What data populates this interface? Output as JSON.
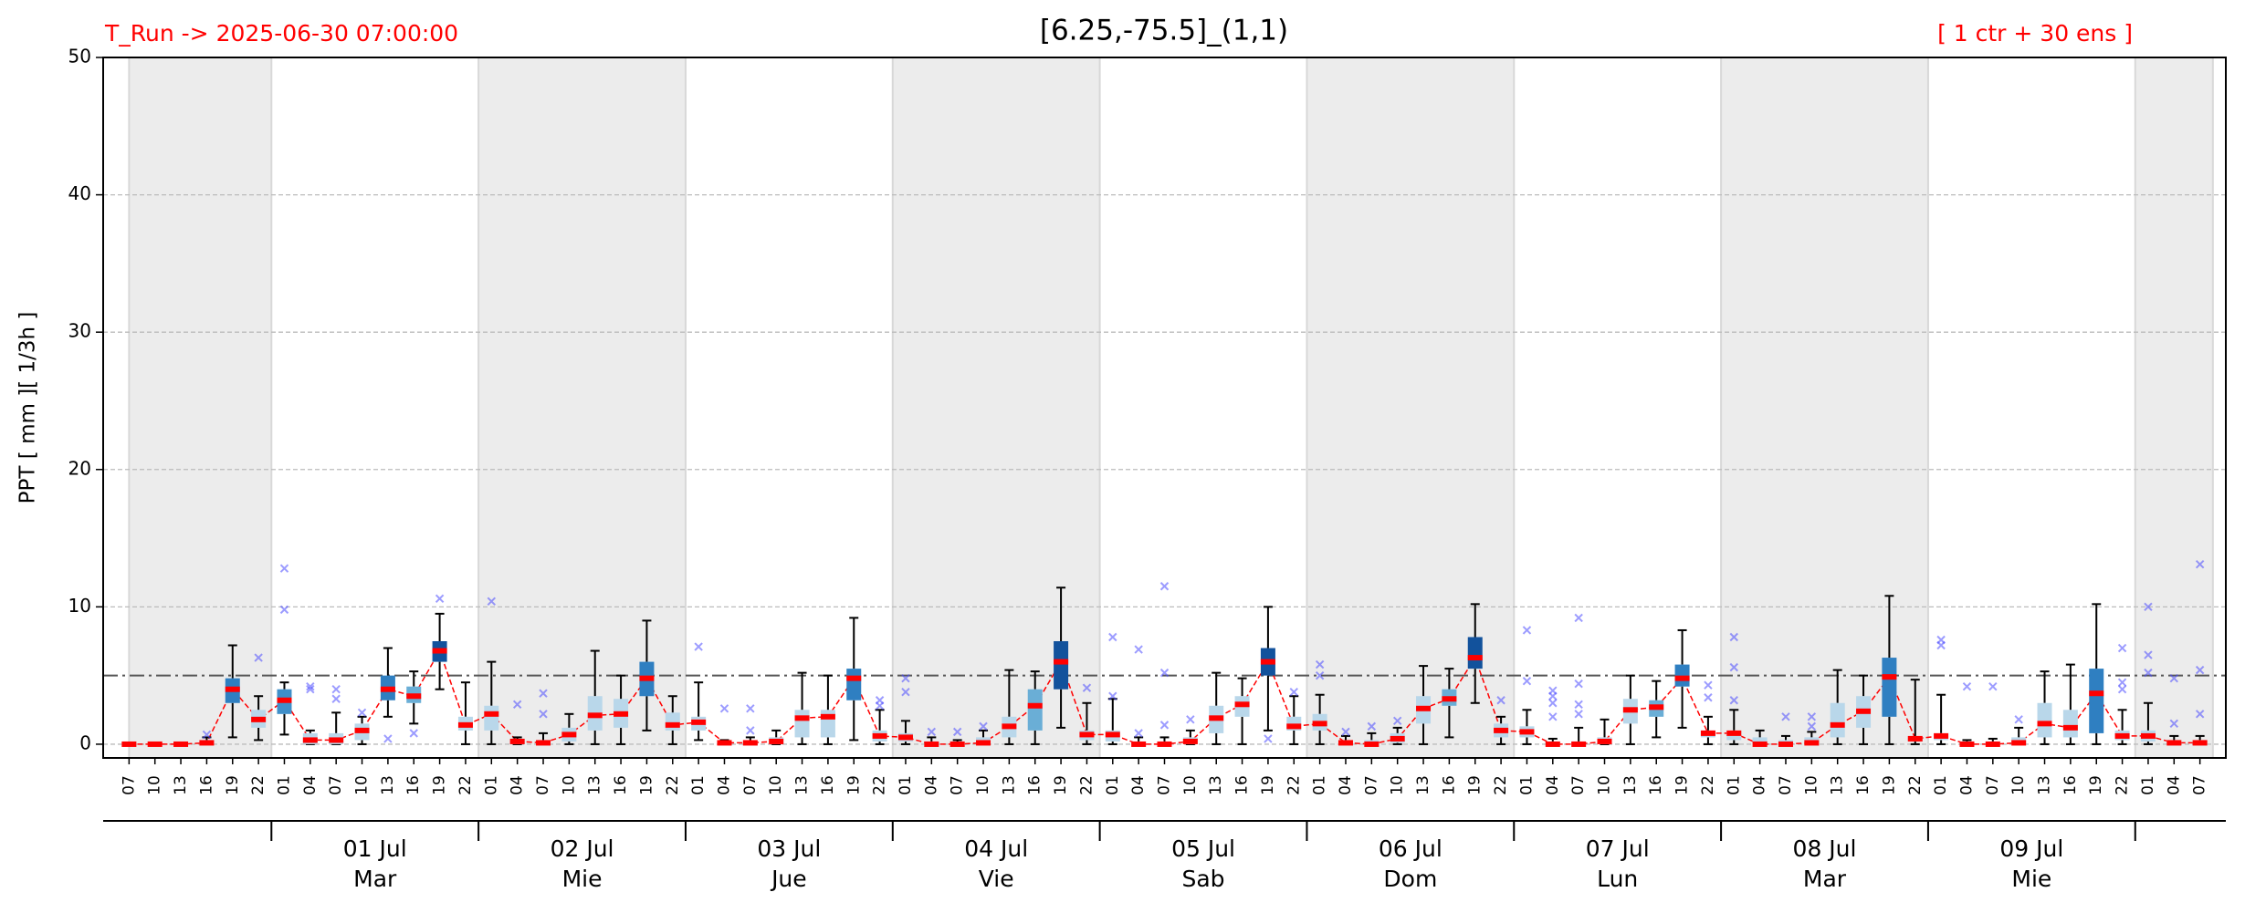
{
  "chart_data": {
    "type": "box",
    "title": "[6.25,-75.5]_(1,1)",
    "run_label": "T_Run -> 2025-06-30  07:00:00",
    "members_label": "[ 1 ctr + 30 ens ]",
    "y_label": "PPT  [ mm ][ 1/3h ]",
    "categories": [
      "07",
      "10",
      "13",
      "16",
      "19",
      "22",
      "01",
      "04",
      "07",
      "10",
      "13",
      "16",
      "19",
      "22",
      "01",
      "04",
      "07",
      "10",
      "13",
      "16",
      "19",
      "22",
      "01",
      "04",
      "07",
      "10",
      "13",
      "16",
      "19",
      "22",
      "01",
      "04",
      "07",
      "10",
      "13",
      "16",
      "19",
      "22",
      "01",
      "04",
      "07",
      "10",
      "13",
      "16",
      "19",
      "22",
      "01",
      "04",
      "07",
      "10",
      "13",
      "16",
      "19",
      "22",
      "01",
      "04",
      "07",
      "10",
      "13",
      "16",
      "19",
      "22",
      "01",
      "04",
      "07",
      "10",
      "13",
      "16",
      "19",
      "22",
      "01",
      "04",
      "07",
      "10",
      "13",
      "16",
      "19",
      "22",
      "01",
      "04",
      "07"
    ],
    "days": [
      {
        "date": "01 Jul",
        "weekday": "Mar"
      },
      {
        "date": "02 Jul",
        "weekday": "Mie"
      },
      {
        "date": "03 Jul",
        "weekday": "Jue"
      },
      {
        "date": "04 Jul",
        "weekday": "Vie"
      },
      {
        "date": "05 Jul",
        "weekday": "Sab"
      },
      {
        "date": "06 Jul",
        "weekday": "Dom"
      },
      {
        "date": "07 Jul",
        "weekday": "Lun"
      },
      {
        "date": "08 Jul",
        "weekday": "Mar"
      },
      {
        "date": "09 Jul",
        "weekday": "Mie"
      }
    ],
    "medians": [
      0,
      0,
      0,
      0.1,
      4.0,
      1.8,
      3.2,
      0.3,
      0.3,
      1.0,
      4.0,
      3.5,
      6.8,
      1.4,
      2.2,
      0.2,
      0.1,
      0.7,
      2.1,
      2.2,
      4.8,
      1.4,
      1.6,
      0.1,
      0.1,
      0.2,
      1.9,
      2.0,
      4.8,
      0.6,
      0.5,
      0,
      0,
      0.1,
      1.3,
      2.8,
      6.0,
      0.7,
      0.7,
      0,
      0,
      0.2,
      1.9,
      2.9,
      6.0,
      1.3,
      1.5,
      0.1,
      0,
      0.4,
      2.6,
      3.3,
      6.3,
      1.0,
      0.9,
      0,
      0,
      0.2,
      2.5,
      2.7,
      4.8,
      0.8,
      0.8,
      0,
      0,
      0.1,
      1.4,
      2.4,
      4.9,
      0.4,
      0.6,
      0,
      0,
      0.1,
      1.5,
      1.2,
      3.7,
      0.6,
      0.6,
      0.1,
      0.1
    ],
    "q1": [
      0,
      0,
      0,
      0,
      3.0,
      1.2,
      2.2,
      0,
      0,
      0.3,
      3.2,
      3.0,
      6.0,
      1.0,
      1.0,
      0,
      0,
      0.2,
      1.0,
      1.2,
      3.5,
      1.0,
      1.0,
      0,
      0,
      0,
      0.5,
      0.5,
      3.2,
      0.2,
      0.2,
      0,
      0,
      0,
      0.5,
      1.0,
      4.0,
      0.3,
      0.2,
      0,
      0,
      0,
      0.8,
      2.0,
      5.0,
      1.0,
      1.0,
      0,
      0,
      0.1,
      1.5,
      2.8,
      5.5,
      0.5,
      0.5,
      0,
      0,
      0,
      1.5,
      2.0,
      4.2,
      0.5,
      0.3,
      0,
      0,
      0,
      0.5,
      1.2,
      2.0,
      0.2,
      0.3,
      0,
      0,
      0,
      0.5,
      0.5,
      0.8,
      0.3,
      0.2,
      0,
      0
    ],
    "q3": [
      0,
      0,
      0,
      0.3,
      4.8,
      2.5,
      4.0,
      0.8,
      0.8,
      1.5,
      5.0,
      4.2,
      7.5,
      2.0,
      2.8,
      0.3,
      0.3,
      1.2,
      3.5,
      3.3,
      6.0,
      2.3,
      2.0,
      0.2,
      0.2,
      0.5,
      2.5,
      2.5,
      5.5,
      1.0,
      0.8,
      0.2,
      0,
      0.5,
      2.0,
      4.0,
      7.5,
      1.0,
      1.0,
      0.2,
      0.2,
      0.5,
      2.8,
      3.5,
      7.0,
      2.0,
      2.2,
      0.3,
      0.3,
      0.8,
      3.5,
      4.0,
      7.8,
      1.5,
      1.3,
      0.2,
      0.2,
      0.5,
      3.3,
      3.2,
      5.8,
      1.0,
      1.0,
      0.5,
      0.3,
      0.5,
      3.0,
      3.5,
      6.3,
      0.5,
      0.8,
      0.2,
      0.2,
      0.5,
      3.0,
      2.5,
      5.5,
      1.0,
      1.0,
      0.3,
      0.3
    ],
    "whislo": [
      0,
      0,
      0,
      0,
      0.5,
      0.3,
      0.7,
      0,
      0,
      0,
      2.0,
      1.5,
      4.0,
      0,
      0,
      0,
      0,
      0,
      0,
      0,
      1.0,
      0,
      0.3,
      0,
      0,
      0,
      0,
      0,
      0.3,
      0,
      0,
      0,
      0,
      0,
      0,
      0,
      1.2,
      0,
      0,
      0,
      0,
      0,
      0,
      0,
      1.0,
      0,
      0,
      0,
      0,
      0,
      0,
      0.5,
      3.0,
      0,
      0,
      0,
      0,
      0,
      0,
      0.5,
      1.2,
      0,
      0,
      0,
      0,
      0,
      0,
      0,
      0,
      0,
      0,
      0,
      0,
      0,
      0,
      0,
      0,
      0,
      0,
      0,
      0
    ],
    "whishi": [
      0,
      0,
      0,
      0.5,
      7.2,
      3.5,
      4.5,
      1.0,
      2.3,
      2.0,
      7.0,
      5.3,
      9.5,
      4.5,
      6.0,
      0.5,
      0.8,
      2.2,
      6.8,
      5.0,
      9.0,
      3.5,
      4.5,
      0.3,
      0.5,
      1.0,
      5.2,
      5.0,
      9.2,
      2.5,
      1.7,
      0.5,
      0.3,
      1.0,
      5.4,
      5.3,
      11.4,
      3.0,
      3.3,
      0.5,
      0.5,
      1.0,
      5.2,
      4.8,
      10.0,
      3.5,
      3.6,
      0.6,
      0.8,
      1.2,
      5.7,
      5.5,
      10.2,
      2.0,
      2.5,
      0.4,
      1.2,
      1.8,
      5.0,
      4.6,
      8.3,
      2.0,
      2.5,
      1.0,
      0.6,
      0.9,
      5.4,
      5.0,
      10.8,
      4.7,
      3.6,
      0.3,
      0.4,
      1.2,
      5.3,
      5.8,
      10.2,
      2.5,
      3.0,
      0.6,
      0.6
    ],
    "fliers": [
      [],
      [],
      [],
      [
        0.7
      ],
      [],
      [
        6.3
      ],
      [
        9.8,
        12.8
      ],
      [
        4.0,
        4.2
      ],
      [
        3.3,
        4.0
      ],
      [
        2.3
      ],
      [
        0.4
      ],
      [
        0.8
      ],
      [
        10.6
      ],
      [],
      [
        10.4
      ],
      [
        2.9
      ],
      [
        2.2,
        3.7
      ],
      [],
      [],
      [],
      [],
      [],
      [
        7.1
      ],
      [
        2.6
      ],
      [
        1.0,
        2.6
      ],
      [],
      [],
      [],
      [],
      [
        2.8,
        3.2
      ],
      [
        3.8,
        4.8
      ],
      [
        0.9
      ],
      [
        0.9
      ],
      [
        1.3
      ],
      [],
      [],
      [],
      [
        4.1
      ],
      [
        3.5,
        7.8
      ],
      [
        0.8,
        6.9
      ],
      [
        1.4,
        5.2,
        11.5
      ],
      [
        1.8
      ],
      [],
      [],
      [
        0.4
      ],
      [
        3.8
      ],
      [
        5.0,
        5.8
      ],
      [
        0.9
      ],
      [
        1.3
      ],
      [
        1.7
      ],
      [],
      [],
      [],
      [
        3.2
      ],
      [
        4.6,
        8.3
      ],
      [
        2.0,
        3.0,
        3.5,
        3.9
      ],
      [
        2.2,
        2.9,
        4.4,
        9.2
      ],
      [],
      [],
      [],
      [],
      [
        3.4,
        4.3
      ],
      [
        3.2,
        5.6,
        7.8
      ],
      [],
      [
        2.0
      ],
      [
        1.3,
        2.0
      ],
      [],
      [],
      [],
      [],
      [
        7.2,
        7.6
      ],
      [
        4.2
      ],
      [
        4.2
      ],
      [
        1.8
      ],
      [],
      [],
      [],
      [
        4.0,
        4.5,
        7.0
      ],
      [
        5.2,
        6.5,
        10.0
      ],
      [
        1.5,
        4.8
      ],
      [
        2.2,
        5.4,
        13.1
      ]
    ],
    "box_colors": [
      "#b9d7ea",
      "#b9d7ea",
      "#b9d7ea",
      "#b9d7ea",
      "#2f7fc1",
      "#b9d7ea",
      "#3f8fc9",
      "#b9d7ea",
      "#b9d7ea",
      "#b9d7ea",
      "#2f7fc1",
      "#6aaed6",
      "#12529c",
      "#b9d7ea",
      "#b9d7ea",
      "#b9d7ea",
      "#b9d7ea",
      "#b9d7ea",
      "#b9d7ea",
      "#b9d7ea",
      "#2f7fc1",
      "#b9d7ea",
      "#b9d7ea",
      "#b9d7ea",
      "#b9d7ea",
      "#b9d7ea",
      "#b9d7ea",
      "#b9d7ea",
      "#2f7fc1",
      "#b9d7ea",
      "#b9d7ea",
      "#b9d7ea",
      "#b9d7ea",
      "#b9d7ea",
      "#b9d7ea",
      "#6aaed6",
      "#12529c",
      "#b9d7ea",
      "#b9d7ea",
      "#b9d7ea",
      "#b9d7ea",
      "#b9d7ea",
      "#b9d7ea",
      "#b9d7ea",
      "#12529c",
      "#b9d7ea",
      "#b9d7ea",
      "#b9d7ea",
      "#b9d7ea",
      "#b9d7ea",
      "#b9d7ea",
      "#6aaed6",
      "#12529c",
      "#b9d7ea",
      "#b9d7ea",
      "#b9d7ea",
      "#b9d7ea",
      "#b9d7ea",
      "#b9d7ea",
      "#6aaed6",
      "#2f7fc1",
      "#b9d7ea",
      "#b9d7ea",
      "#b9d7ea",
      "#b9d7ea",
      "#b9d7ea",
      "#b9d7ea",
      "#b9d7ea",
      "#2f7fc1",
      "#b9d7ea",
      "#b9d7ea",
      "#b9d7ea",
      "#b9d7ea",
      "#b9d7ea",
      "#b9d7ea",
      "#b9d7ea",
      "#2f7fc1",
      "#b9d7ea",
      "#b9d7ea",
      "#b9d7ea",
      "#b9d7ea"
    ],
    "median_color": "#ff0000",
    "whisker_color": "#000000",
    "flier_color": "#4a4aff",
    "shade_color": "#ececec",
    "threshold": 5,
    "ylim": [
      -1,
      50
    ],
    "yticks": [
      0,
      10,
      20,
      30,
      40,
      50
    ],
    "grid": true
  }
}
